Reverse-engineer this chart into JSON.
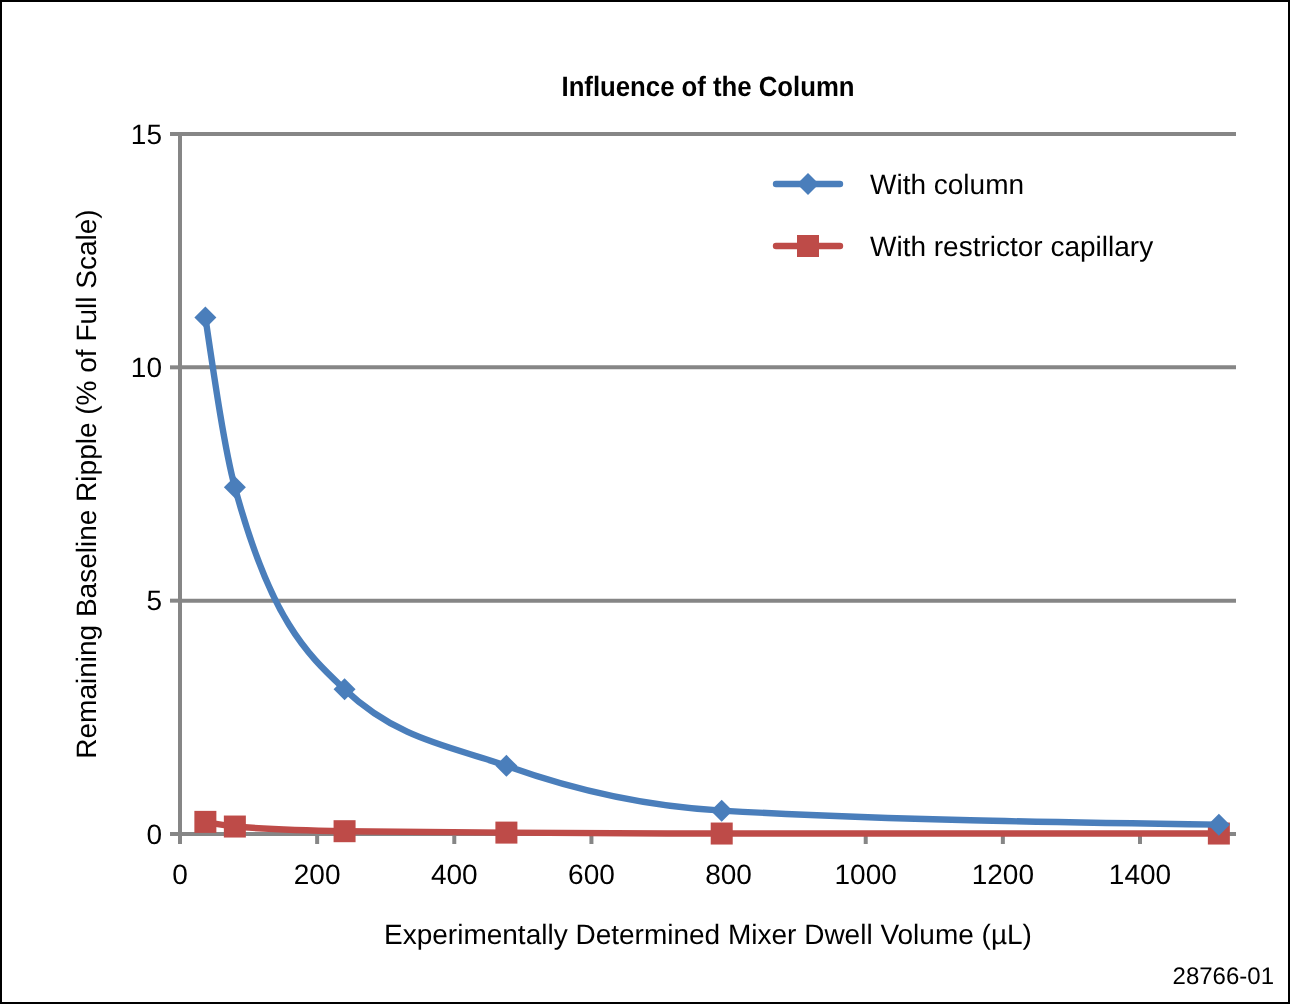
{
  "chart_data": {
    "type": "line",
    "title": "Influence of the Column",
    "xlabel": "Experimentally Determined Mixer Dwell Volume (µL)",
    "ylabel": "Remaining Baseline Ripple (% of Full Scale)",
    "x": [
      37,
      80,
      240,
      476,
      790,
      1515
    ],
    "series": [
      {
        "name": "With column",
        "color": "#4a7ebb",
        "marker": "diamond",
        "values": [
          11.07,
          7.43,
          3.1,
          1.46,
          0.5,
          0.2
        ]
      },
      {
        "name": "With restrictor capillary",
        "color": "#be4b48",
        "marker": "square",
        "values": [
          0.26,
          0.16,
          0.06,
          0.03,
          0.01,
          0.01
        ]
      }
    ],
    "xlim": [
      0,
      1540
    ],
    "xticks": [
      0,
      200,
      400,
      600,
      800,
      1000,
      1200,
      1400
    ],
    "ylim": [
      0,
      15
    ],
    "yticks": [
      0,
      5,
      10,
      15
    ],
    "grid": "y",
    "legend": "top right",
    "annotations": [
      "28766-01"
    ]
  }
}
